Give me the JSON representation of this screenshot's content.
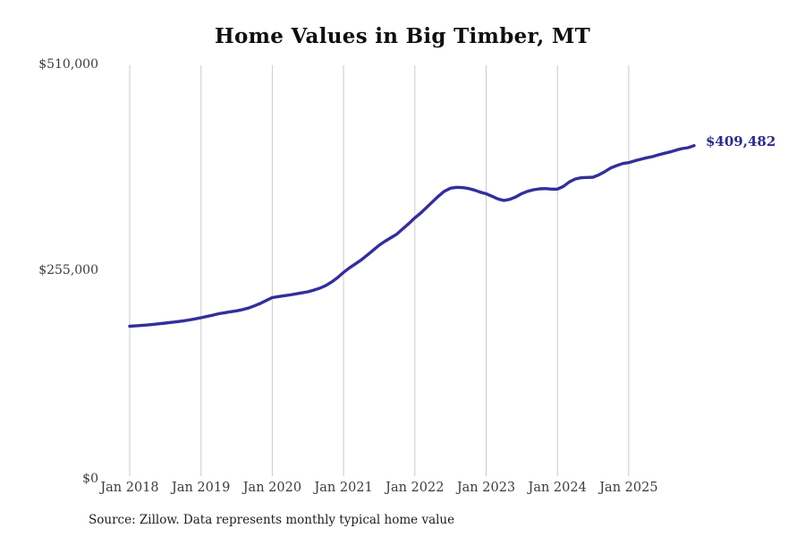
{
  "title": "Home Values in Big Timber, MT",
  "source_note": "Source: Zillow. Data represents monthly typical home value",
  "final_value_label": "$409,482",
  "colors": {
    "line": "#342e9b",
    "final_label": "#2d2b85",
    "gridline": "#cbcbcb",
    "title": "#0f0f0f",
    "tick_text": "#3c3c3c",
    "source_text": "#1c1c1c",
    "background": "#ffffff"
  },
  "chart_data": {
    "type": "line",
    "title": "Home Values in Big Timber, MT",
    "xlabel": "",
    "ylabel": "",
    "x_tick_labels": [
      "Jan 2018",
      "Jan 2019",
      "Jan 2020",
      "Jan 2021",
      "Jan 2022",
      "Jan 2023",
      "Jan 2024",
      "Jan 2025"
    ],
    "y_tick_labels": [
      "$0",
      "$255,000",
      "$510,000"
    ],
    "y_ticks": [
      0,
      255000,
      510000
    ],
    "ylim": [
      0,
      510000
    ],
    "grid": "vertical-only",
    "legend": "none",
    "frequency": "monthly",
    "start_label": "Jan 2018",
    "end_label_month": "Dec 2025",
    "final_value": 409482,
    "series": [
      {
        "name": "Typical home value",
        "values": [
          185700,
          186200,
          186700,
          187300,
          188000,
          188800,
          189600,
          190500,
          191400,
          192300,
          193500,
          194800,
          196200,
          197800,
          199500,
          201200,
          202500,
          203700,
          204800,
          206300,
          208200,
          211000,
          214000,
          217600,
          221200,
          222400,
          223500,
          224500,
          225800,
          227100,
          228400,
          230500,
          232800,
          236000,
          240500,
          246000,
          252500,
          258000,
          263000,
          268000,
          274000,
          280000,
          286000,
          291000,
          295500,
          300000,
          306500,
          313000,
          320000,
          326000,
          333000,
          340000,
          347000,
          353000,
          356700,
          357800,
          357400,
          356300,
          354400,
          351800,
          349800,
          346700,
          343400,
          341500,
          342900,
          345900,
          350000,
          352900,
          354800,
          355900,
          356200,
          355600,
          355600,
          358900,
          364400,
          368100,
          369600,
          370000,
          370300,
          373300,
          377300,
          381800,
          384700,
          387300,
          388400,
          390600,
          392500,
          394400,
          395800,
          398000,
          399900,
          401700,
          403900,
          405800,
          406900,
          409482
        ]
      }
    ]
  }
}
